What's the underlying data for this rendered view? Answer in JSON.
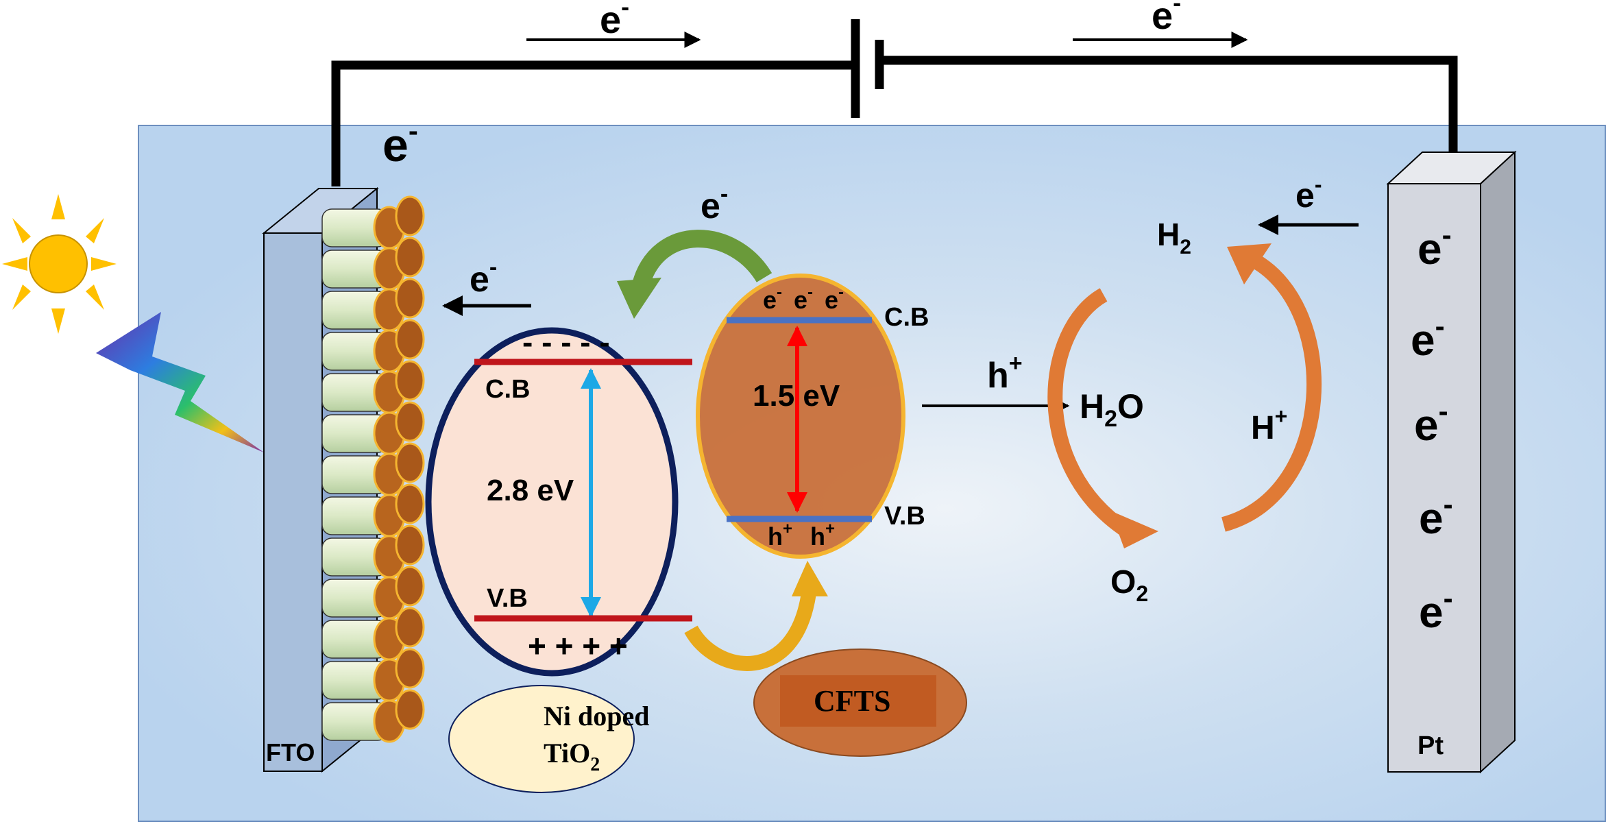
{
  "colors": {
    "electrolyte": "#c5dcf0",
    "fto": "#a8bfdc",
    "pt": "#d4d7df",
    "tio2_fill": "#fbe2d5",
    "tio2_border": "#0d1f5c",
    "cfts_fill": "#c8703a",
    "band_red": "#c0151b",
    "band_blue": "#4a72c4",
    "arrow_cyan": "#1ca8e6",
    "arrow_red": "#ff0000",
    "curve_orange": "#e07a35",
    "curve_green": "#6a9a3a",
    "curve_yellow": "#e8a91a",
    "sun": "#ffc000",
    "ni_tio2_label_bg": "#fff2cc"
  },
  "circuit": {
    "top_electron_left": "e",
    "top_electron_right": "e",
    "charge_sign": "-"
  },
  "fto": {
    "label": "FTO",
    "electron": "e",
    "electron_sign": "-"
  },
  "pt": {
    "label": "Pt",
    "electrons": [
      "e",
      "e",
      "e",
      "e",
      "e"
    ],
    "electron_sign": "-"
  },
  "tio2": {
    "cb_label": "C.B",
    "vb_label": "V.B",
    "band_gap": "2.8 eV",
    "electrons_mark": "- - - - -",
    "holes_mark": "+ + + +",
    "electron_to_fto": "e",
    "caption_line1": "Ni doped",
    "caption_line2_main": "TiO",
    "caption_line2_sub": "2"
  },
  "cfts": {
    "cb_label": "C.B",
    "vb_label": "V.B",
    "band_gap": "1.5  eV",
    "electrons": [
      "e",
      "e",
      "e"
    ],
    "holes": [
      "h",
      "h"
    ],
    "hole_sign": "+",
    "transfer_electron": "e",
    "caption": "CFTS"
  },
  "reactions": {
    "hole": "h",
    "hole_sign": "+",
    "water_main": "H",
    "water_sub": "2",
    "water_tail": "O",
    "oxygen_main": "O",
    "oxygen_sub": "2",
    "proton_main": "H",
    "proton_sign": "+",
    "hydrogen_main": "H",
    "hydrogen_sub": "2",
    "electron_from_pt": "e"
  }
}
